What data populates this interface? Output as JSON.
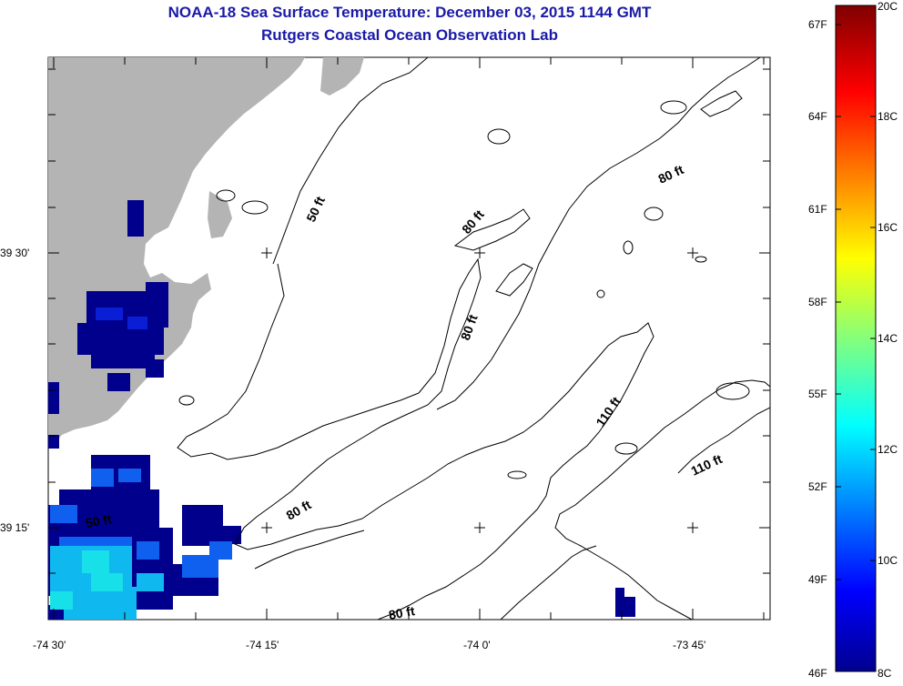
{
  "header": {
    "title": "NOAA-18 Sea Surface Temperature:  December 03, 2015 1144 GMT",
    "subtitle": "Rutgers Coastal Ocean Observation Lab"
  },
  "axes": {
    "y_ticks": [
      "39 30'",
      "39 15'"
    ],
    "x_ticks": [
      "-74 30'",
      "-74 15'",
      "-74 0'",
      "-73 45'"
    ]
  },
  "contour_labels": [
    "50 ft",
    "80 ft",
    "80 ft",
    "80 ft",
    "110 ft",
    "110 ft",
    "80 ft",
    "50 ft",
    "80 ft"
  ],
  "colorbar": {
    "fahrenheit": [
      "67F",
      "64F",
      "61F",
      "58F",
      "55F",
      "52F",
      "49F",
      "46F"
    ],
    "celsius": [
      "20C",
      "18C",
      "16C",
      "14C",
      "12C",
      "10C",
      "8C"
    ]
  },
  "colors": {
    "title": "#1a1aa8",
    "land": "#b4b4b4",
    "cold_water": "#00008c"
  }
}
